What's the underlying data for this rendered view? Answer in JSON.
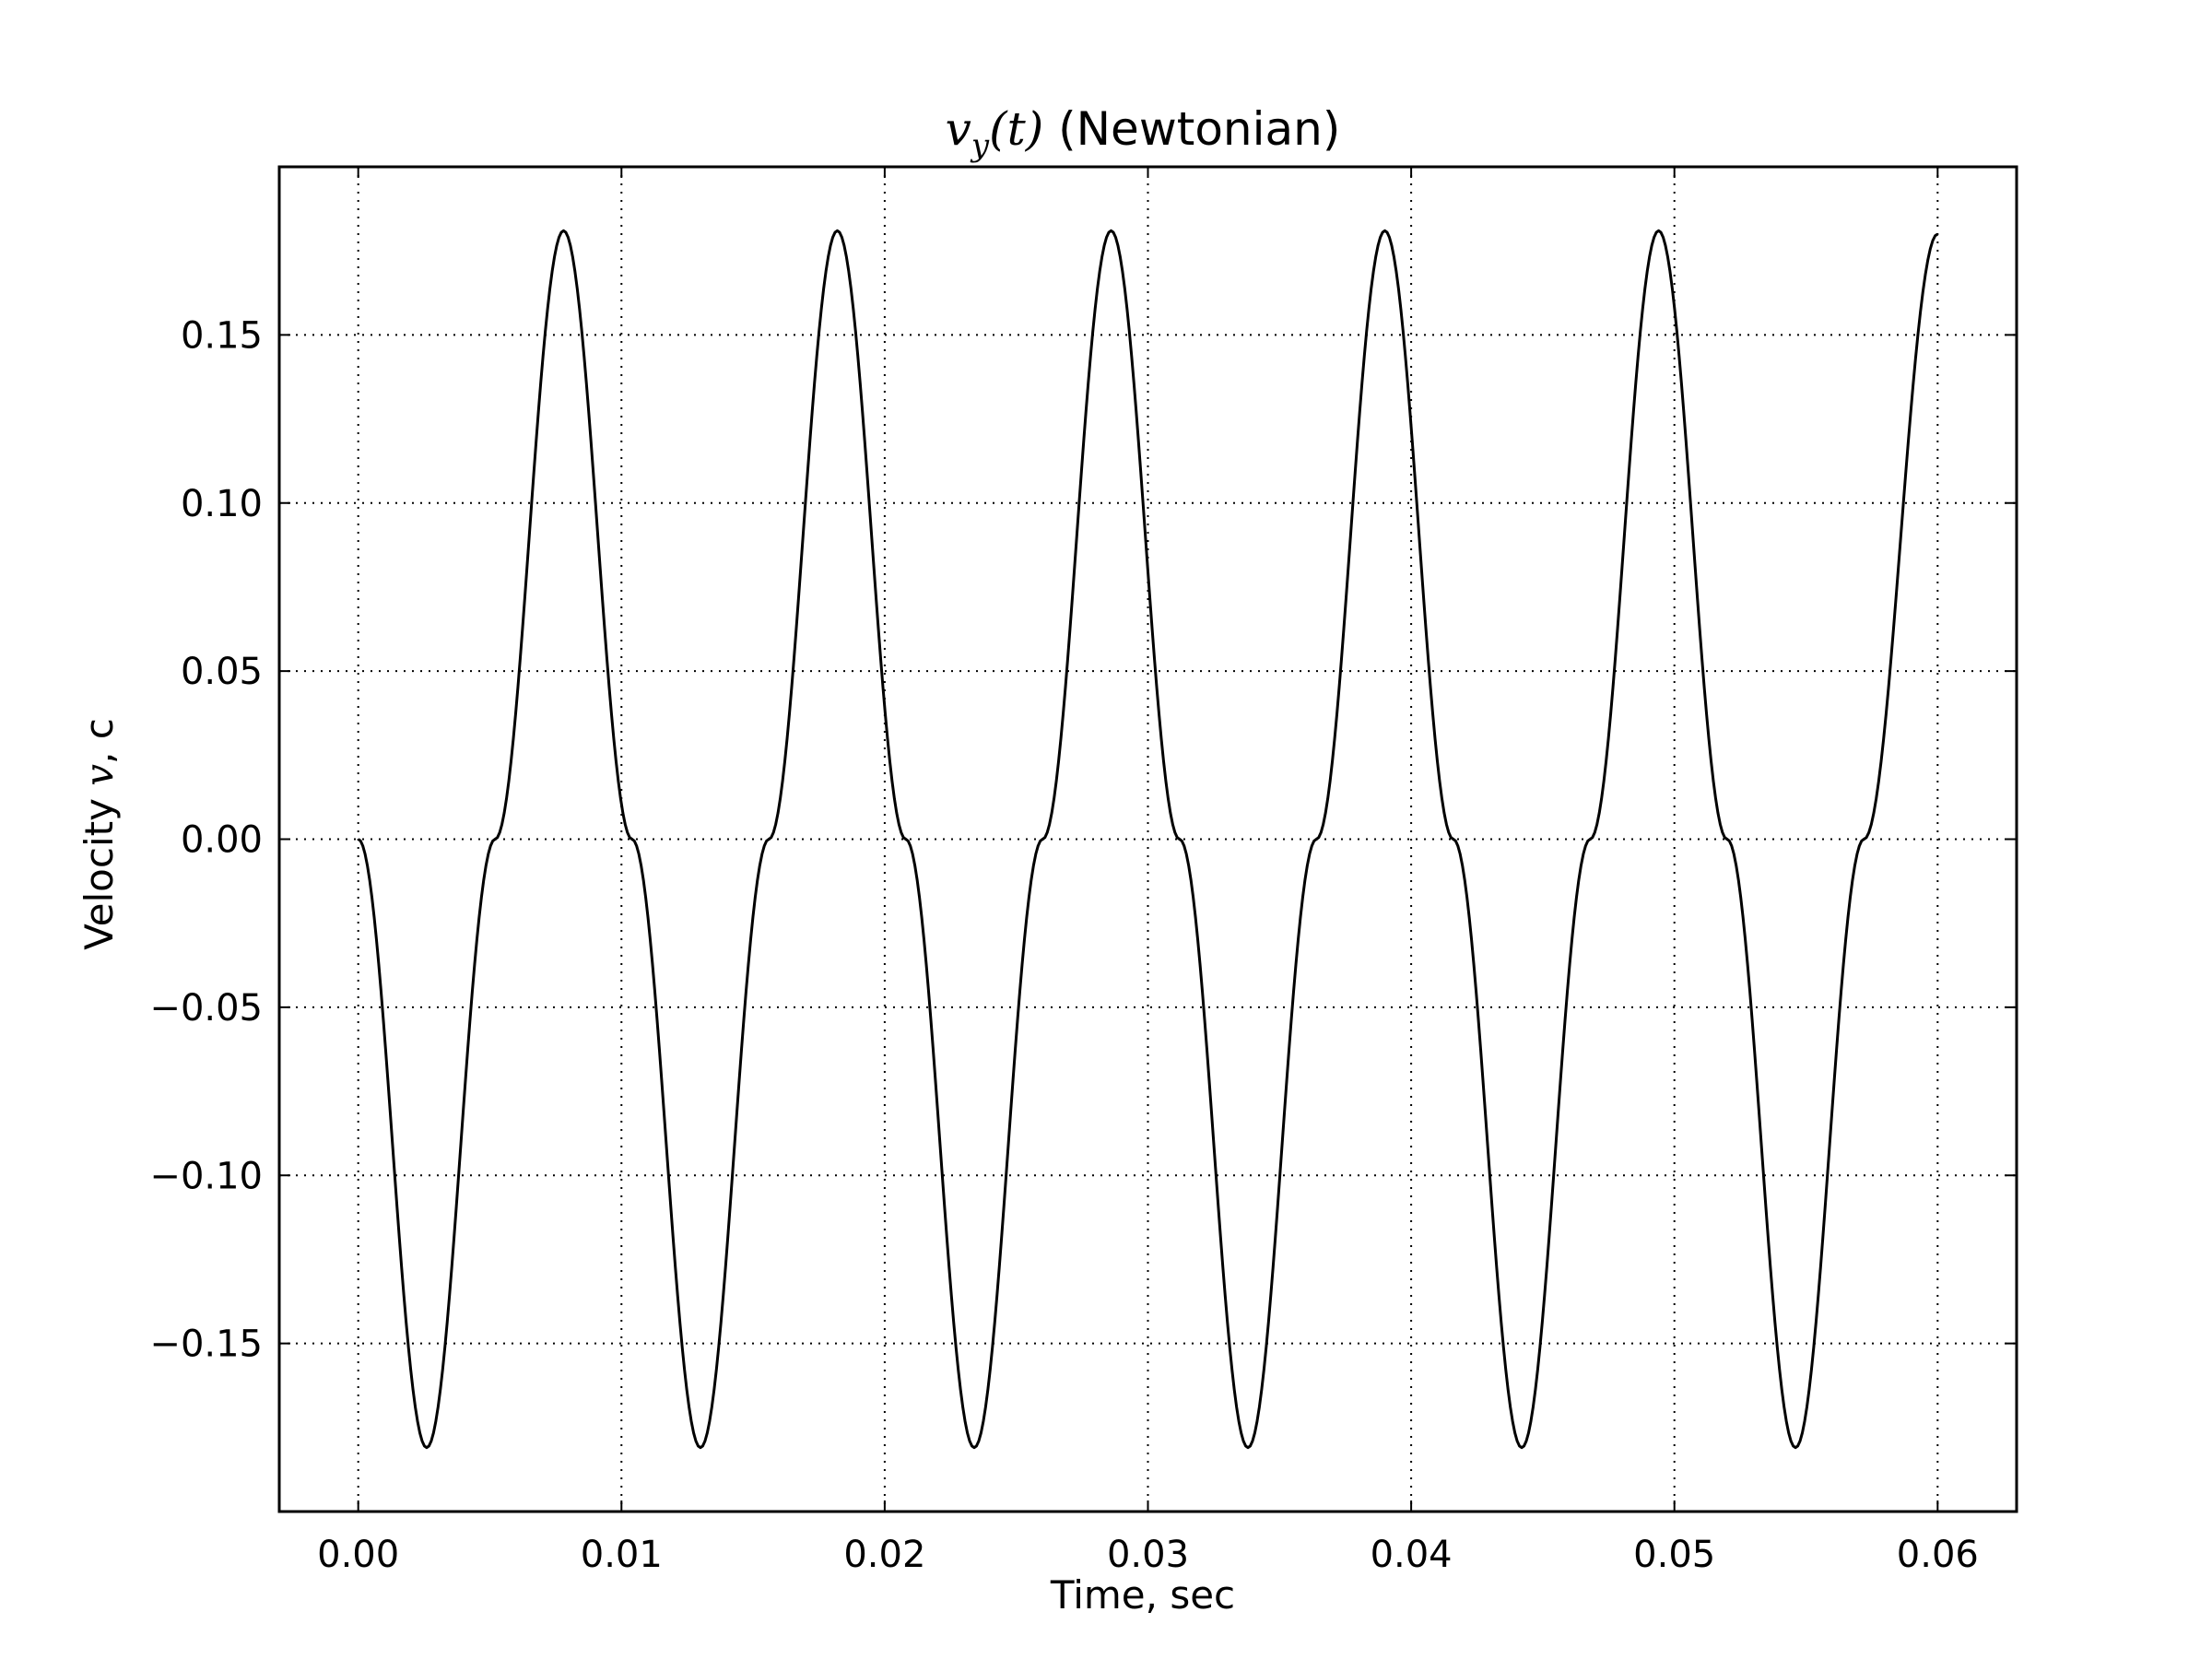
{
  "chart_data": {
    "type": "line",
    "title": {
      "math_base": "v",
      "math_sub": "y",
      "math_arg": "(t)",
      "text": " (Newtonian)"
    },
    "xlabel": "Time, sec",
    "ylabel": {
      "before": "Velocity ",
      "math": "v",
      "after": ", c"
    },
    "xlim": [
      -0.003,
      0.063
    ],
    "ylim": [
      -0.2,
      0.2
    ],
    "xticks": [
      0.0,
      0.01,
      0.02,
      0.03,
      0.04,
      0.05,
      0.06
    ],
    "xtick_labels": [
      "0.00",
      "0.01",
      "0.02",
      "0.03",
      "0.04",
      "0.05",
      "0.06"
    ],
    "yticks": [
      -0.15,
      -0.1,
      -0.05,
      0.0,
      0.05,
      0.1,
      0.15
    ],
    "ytick_labels": [
      "−0.15",
      "−0.10",
      "−0.05",
      "0.00",
      "0.05",
      "0.10",
      "0.15"
    ],
    "grid": true,
    "series": [
      {
        "color": "#000000",
        "x": [
          0.0,
          0.0026,
          0.0052,
          0.0078,
          0.0104,
          0.013,
          0.0156,
          0.0182,
          0.0208,
          0.0234,
          0.026,
          0.0286,
          0.0312,
          0.0338,
          0.0364,
          0.039,
          0.0416,
          0.0442,
          0.0468,
          0.0494,
          0.052,
          0.0546,
          0.0572,
          0.06
        ],
        "y": [
          0.0,
          -0.181,
          0.0,
          0.181,
          0.0,
          -0.181,
          0.0,
          0.181,
          0.0,
          -0.181,
          0.0,
          0.181,
          0.0,
          -0.181,
          0.0,
          0.181,
          0.0,
          -0.181,
          0.0,
          0.181,
          0.0,
          -0.181,
          0.0,
          0.18
        ]
      }
    ]
  }
}
